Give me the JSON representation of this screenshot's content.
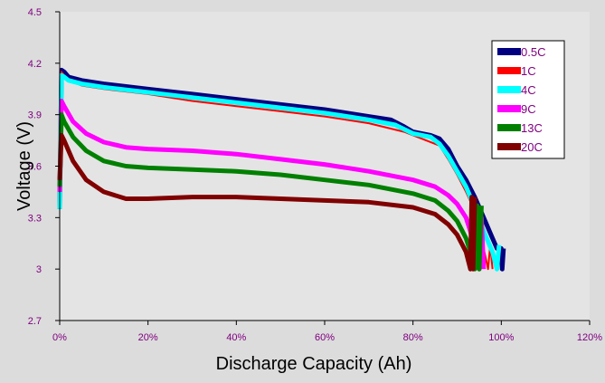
{
  "chart_data": {
    "type": "line",
    "title": "",
    "xlabel": "Discharge Capacity (Ah)",
    "ylabel": "Voltage (V)",
    "xlim": [
      0,
      120
    ],
    "ylim": [
      2.7,
      4.5
    ],
    "x_ticks": [
      "0%",
      "20%",
      "40%",
      "60%",
      "80%",
      "100%",
      "120%"
    ],
    "y_ticks": [
      "2.7",
      "3",
      "3.3",
      "3.6",
      "3.9",
      "4.2",
      "4.5"
    ],
    "tick_color": "#800080",
    "grid": false,
    "legend_position": "top-right",
    "series": [
      {
        "name": "0.5C",
        "color": "#000080",
        "points": [
          [
            0,
            3.35
          ],
          [
            0.4,
            4.16
          ],
          [
            1,
            4.15
          ],
          [
            2,
            4.12
          ],
          [
            5,
            4.1
          ],
          [
            10,
            4.08
          ],
          [
            20,
            4.05
          ],
          [
            30,
            4.02
          ],
          [
            40,
            3.99
          ],
          [
            50,
            3.96
          ],
          [
            60,
            3.93
          ],
          [
            70,
            3.89
          ],
          [
            75,
            3.87
          ],
          [
            78,
            3.83
          ],
          [
            80,
            3.8
          ],
          [
            84,
            3.78
          ],
          [
            86,
            3.76
          ],
          [
            88,
            3.7
          ],
          [
            90,
            3.6
          ],
          [
            92,
            3.52
          ],
          [
            94,
            3.42
          ],
          [
            96,
            3.3
          ],
          [
            98,
            3.18
          ],
          [
            99,
            3.12
          ],
          [
            100,
            3.12
          ],
          [
            100.2,
            3.0
          ],
          [
            100.5,
            3.12
          ]
        ]
      },
      {
        "name": "1C",
        "color": "#ff0000",
        "points": [
          [
            0,
            3.35
          ],
          [
            0.4,
            4.15
          ],
          [
            1,
            4.13
          ],
          [
            2,
            4.1
          ],
          [
            5,
            4.07
          ],
          [
            10,
            4.05
          ],
          [
            20,
            4.02
          ],
          [
            30,
            3.98
          ],
          [
            40,
            3.95
          ],
          [
            50,
            3.92
          ],
          [
            60,
            3.89
          ],
          [
            70,
            3.85
          ],
          [
            78,
            3.8
          ],
          [
            82,
            3.76
          ],
          [
            86,
            3.72
          ],
          [
            88,
            3.64
          ],
          [
            90,
            3.55
          ],
          [
            92,
            3.45
          ],
          [
            94,
            3.34
          ],
          [
            95,
            3.22
          ],
          [
            96,
            3.12
          ],
          [
            97,
            3.0
          ],
          [
            97.5,
            3.14
          ],
          [
            98,
            3.0
          ]
        ]
      },
      {
        "name": "4C",
        "color": "#00ffff",
        "points": [
          [
            0,
            3.35
          ],
          [
            0.4,
            4.13
          ],
          [
            1,
            4.12
          ],
          [
            2,
            4.1
          ],
          [
            5,
            4.08
          ],
          [
            10,
            4.06
          ],
          [
            20,
            4.03
          ],
          [
            30,
            4.0
          ],
          [
            40,
            3.97
          ],
          [
            50,
            3.94
          ],
          [
            60,
            3.91
          ],
          [
            70,
            3.87
          ],
          [
            76,
            3.84
          ],
          [
            80,
            3.79
          ],
          [
            84,
            3.77
          ],
          [
            86,
            3.73
          ],
          [
            88,
            3.66
          ],
          [
            90,
            3.57
          ],
          [
            92,
            3.48
          ],
          [
            94,
            3.36
          ],
          [
            96,
            3.22
          ],
          [
            98,
            3.1
          ],
          [
            99,
            3.0
          ],
          [
            99.5,
            3.14
          ]
        ]
      },
      {
        "name": "9C",
        "color": "#ff00ff",
        "points": [
          [
            0,
            3.45
          ],
          [
            0.4,
            3.98
          ],
          [
            1,
            3.95
          ],
          [
            3,
            3.86
          ],
          [
            6,
            3.79
          ],
          [
            10,
            3.74
          ],
          [
            15,
            3.71
          ],
          [
            20,
            3.7
          ],
          [
            30,
            3.69
          ],
          [
            40,
            3.67
          ],
          [
            50,
            3.64
          ],
          [
            60,
            3.61
          ],
          [
            70,
            3.57
          ],
          [
            80,
            3.52
          ],
          [
            85,
            3.48
          ],
          [
            88,
            3.43
          ],
          [
            90,
            3.38
          ],
          [
            92,
            3.3
          ],
          [
            93,
            3.22
          ],
          [
            94,
            3.12
          ],
          [
            95,
            3.0
          ],
          [
            95.5,
            3.3
          ],
          [
            96,
            3.0
          ]
        ]
      },
      {
        "name": "13C",
        "color": "#008000",
        "points": [
          [
            0,
            3.48
          ],
          [
            0.4,
            3.9
          ],
          [
            1,
            3.86
          ],
          [
            3,
            3.77
          ],
          [
            6,
            3.69
          ],
          [
            10,
            3.63
          ],
          [
            15,
            3.6
          ],
          [
            20,
            3.59
          ],
          [
            30,
            3.58
          ],
          [
            40,
            3.57
          ],
          [
            50,
            3.55
          ],
          [
            60,
            3.52
          ],
          [
            70,
            3.49
          ],
          [
            80,
            3.44
          ],
          [
            85,
            3.4
          ],
          [
            88,
            3.34
          ],
          [
            90,
            3.28
          ],
          [
            92,
            3.18
          ],
          [
            93,
            3.1
          ],
          [
            94,
            3.0
          ],
          [
            94.5,
            3.37
          ],
          [
            95,
            3.0
          ],
          [
            95.5,
            3.37
          ]
        ]
      },
      {
        "name": "20C",
        "color": "#800000",
        "points": [
          [
            0,
            3.52
          ],
          [
            0.4,
            3.78
          ],
          [
            1,
            3.75
          ],
          [
            3,
            3.63
          ],
          [
            6,
            3.52
          ],
          [
            10,
            3.45
          ],
          [
            15,
            3.41
          ],
          [
            20,
            3.41
          ],
          [
            30,
            3.42
          ],
          [
            40,
            3.42
          ],
          [
            50,
            3.41
          ],
          [
            60,
            3.4
          ],
          [
            70,
            3.39
          ],
          [
            80,
            3.36
          ],
          [
            85,
            3.32
          ],
          [
            88,
            3.26
          ],
          [
            90,
            3.2
          ],
          [
            92,
            3.1
          ],
          [
            93,
            3.0
          ],
          [
            93.3,
            3.42
          ],
          [
            93.6,
            3.0
          ],
          [
            94,
            3.42
          ]
        ]
      }
    ]
  }
}
